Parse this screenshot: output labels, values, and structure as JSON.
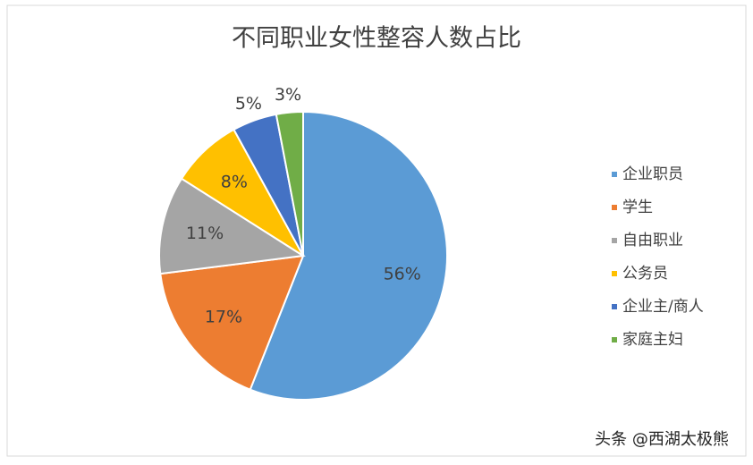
{
  "chart_data": {
    "type": "pie",
    "title": "不同职业女性整容人数占比",
    "categories": [
      "企业职员",
      "学生",
      "自由职业",
      "公务员",
      "企业主/商人",
      "家庭主妇"
    ],
    "values": [
      56,
      17,
      11,
      8,
      5,
      3
    ],
    "value_labels": [
      "56%",
      "17%",
      "11%",
      "8%",
      "5%",
      "3%"
    ],
    "colors": [
      "#5b9bd5",
      "#ed7d31",
      "#a5a5a5",
      "#ffc000",
      "#4472c4",
      "#70ad47"
    ],
    "legend": "right",
    "watermark": "头条 @西湖太极熊"
  }
}
